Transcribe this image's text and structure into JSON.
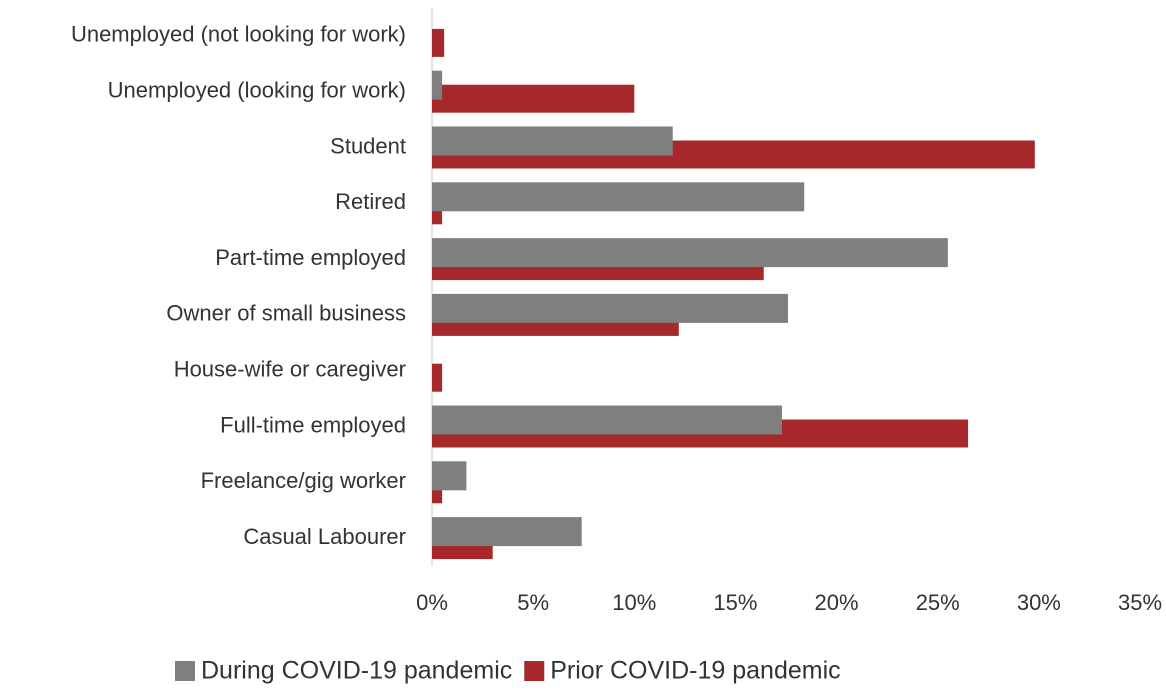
{
  "chart_data": {
    "type": "hbar",
    "categories": [
      "Unemployed (not looking for work)",
      "Unemployed (looking for work)",
      "Student",
      "Retired",
      "Part-time employed",
      "Owner of small business",
      "House-wife or caregiver",
      "Full-time employed",
      "Freelance/gig worker",
      "Casual Labourer"
    ],
    "series": [
      {
        "name": "During COVID-19 pandemic",
        "color": "#7f7f7f",
        "values": [
          0,
          0.5,
          11.9,
          18.4,
          25.5,
          17.6,
          0,
          17.3,
          1.7,
          7.4
        ]
      },
      {
        "name": "Prior COVID-19 pandemic",
        "color": "#a6282b",
        "values": [
          0.6,
          10.0,
          29.8,
          0.5,
          16.4,
          12.2,
          0.5,
          26.5,
          0.5,
          3.0
        ]
      }
    ],
    "xlim": [
      0,
      35
    ],
    "xticks": [
      {
        "value": 0,
        "label": "0%"
      },
      {
        "value": 5,
        "label": "5%"
      },
      {
        "value": 10,
        "label": "10%"
      },
      {
        "value": 15,
        "label": "15%"
      },
      {
        "value": 20,
        "label": "20%"
      },
      {
        "value": 25,
        "label": "25%"
      },
      {
        "value": 30,
        "label": "30%"
      },
      {
        "value": 35,
        "label": "35%"
      }
    ],
    "legend": "bottom"
  }
}
